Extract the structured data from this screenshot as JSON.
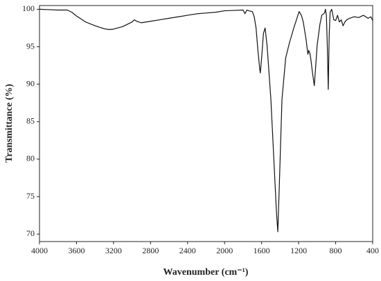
{
  "chart_data": {
    "type": "line",
    "x_label": "Wavenumber (cm⁻¹)",
    "y_label": "Transmittance (%)",
    "color": "#111111",
    "x": [
      4000,
      3900,
      3800,
      3700,
      3650,
      3600,
      3500,
      3400,
      3300,
      3250,
      3200,
      3100,
      3000,
      2975,
      2950,
      2900,
      2800,
      2700,
      2600,
      2500,
      2400,
      2300,
      2200,
      2100,
      2000,
      1900,
      1800,
      1780,
      1760,
      1740,
      1700,
      1680,
      1660,
      1640,
      1620,
      1614,
      1600,
      1580,
      1562,
      1540,
      1500,
      1460,
      1440,
      1425,
      1410,
      1380,
      1340,
      1300,
      1250,
      1195,
      1170,
      1150,
      1120,
      1100,
      1091,
      1080,
      1070,
      1050,
      1031,
      1015,
      1000,
      970,
      950,
      920,
      911,
      900,
      890,
      880,
      870,
      860,
      843,
      820,
      800,
      780,
      760,
      740,
      720,
      701,
      680,
      650,
      600,
      550,
      500,
      450,
      420,
      400
    ],
    "values": [
      100,
      99.95,
      99.9,
      99.9,
      99.6,
      99.1,
      98.3,
      97.8,
      97.4,
      97.3,
      97.35,
      97.7,
      98.3,
      98.6,
      98.4,
      98.2,
      98.4,
      98.6,
      98.8,
      99.0,
      99.2,
      99.4,
      99.5,
      99.6,
      99.8,
      99.85,
      99.9,
      99.4,
      99.9,
      99.8,
      99.7,
      99.0,
      97.5,
      94.5,
      92.0,
      91.5,
      93.5,
      96.8,
      97.5,
      95.0,
      88.0,
      78.0,
      73.0,
      70.3,
      76.0,
      88.0,
      93.5,
      95.5,
      97.6,
      99.7,
      99.2,
      98.3,
      96.0,
      94.0,
      94.5,
      94.2,
      93.5,
      91.5,
      89.8,
      92.5,
      95.2,
      98.0,
      99.2,
      99.5,
      100,
      99.2,
      95.0,
      89.3,
      96.5,
      99.6,
      100,
      98.6,
      98.5,
      99.2,
      98.3,
      98.6,
      97.8,
      98.3,
      98.6,
      98.8,
      99.0,
      98.9,
      99.2,
      98.8,
      99.0,
      98.5
    ],
    "xlim": [
      4000,
      400
    ],
    "ylim": [
      69,
      100.5
    ],
    "xticks": [
      4000,
      3600,
      3200,
      2800,
      2400,
      2000,
      1600,
      1200,
      800,
      400
    ],
    "yticks": [
      70,
      75,
      80,
      85,
      90,
      95,
      100
    ]
  }
}
